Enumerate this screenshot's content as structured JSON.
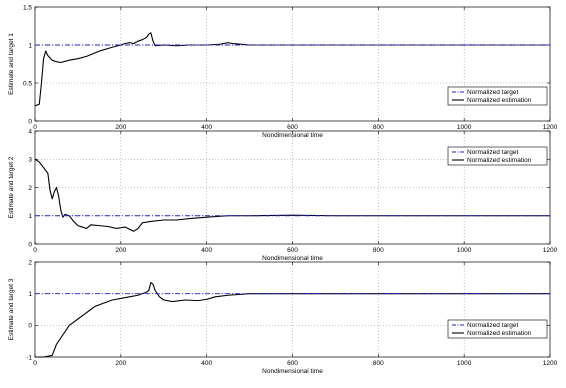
{
  "chart_data": [
    {
      "type": "line",
      "xlabel": "Nondimensional time",
      "ylabel": "Estimate and target 1",
      "xlim": [
        0,
        1200
      ],
      "ylim": [
        0,
        1.5
      ],
      "xticks": [
        0,
        200,
        400,
        600,
        800,
        1000,
        1200
      ],
      "yticks": [
        0,
        0.5,
        1,
        1.5
      ],
      "xtick_labels": [
        "0",
        "200",
        "400",
        "600",
        "800",
        "1000",
        "1200"
      ],
      "ytick_labels": [
        "0",
        "0.5",
        "1",
        "1.5"
      ],
      "grid": true,
      "legend_position": "bottom-right",
      "series": [
        {
          "name": "Normalized target",
          "style": "dashdot",
          "color": "#1f1fcf",
          "x": [
            0,
            1200
          ],
          "y": [
            1,
            1
          ]
        },
        {
          "name": "Normalized estimation",
          "style": "solid",
          "color": "#000000",
          "x": [
            0,
            10,
            15,
            20,
            25,
            30,
            40,
            50,
            60,
            80,
            100,
            120,
            150,
            180,
            200,
            210,
            220,
            230,
            240,
            250,
            260,
            265,
            270,
            275,
            280,
            300,
            330,
            360,
            400,
            430,
            450,
            460,
            500,
            560,
            620,
            700,
            800,
            900,
            1000,
            1100,
            1200
          ],
          "y": [
            0.2,
            0.22,
            0.5,
            0.82,
            0.92,
            0.86,
            0.8,
            0.78,
            0.77,
            0.8,
            0.82,
            0.85,
            0.92,
            0.97,
            1.0,
            1.02,
            1.03,
            1.02,
            1.05,
            1.07,
            1.1,
            1.14,
            1.16,
            1.05,
            0.99,
            1.0,
            0.99,
            1.0,
            1.0,
            1.01,
            1.03,
            1.02,
            1.0,
            1.0,
            1.0,
            1.0,
            1.0,
            1.0,
            1.0,
            1.0,
            1.0
          ]
        }
      ]
    },
    {
      "type": "line",
      "xlabel": "Nondimensional time",
      "ylabel": "Estimate and target 2",
      "xlim": [
        0,
        1200
      ],
      "ylim": [
        0,
        4
      ],
      "xticks": [
        0,
        200,
        400,
        600,
        800,
        1000,
        1200
      ],
      "yticks": [
        0,
        1,
        2,
        3,
        4
      ],
      "xtick_labels": [
        "0",
        "200",
        "400",
        "600",
        "800",
        "1000",
        "1200"
      ],
      "ytick_labels": [
        "0",
        "1",
        "2",
        "3",
        "4"
      ],
      "grid": true,
      "legend_position": "top-right",
      "series": [
        {
          "name": "Normalized target",
          "style": "dashdot",
          "color": "#1f1fcf",
          "x": [
            0,
            1200
          ],
          "y": [
            1,
            1
          ]
        },
        {
          "name": "Normalized estimation",
          "style": "solid",
          "color": "#000000",
          "x": [
            0,
            10,
            20,
            30,
            35,
            40,
            45,
            50,
            55,
            60,
            65,
            70,
            80,
            90,
            100,
            110,
            120,
            130,
            150,
            170,
            190,
            210,
            230,
            240,
            250,
            270,
            300,
            330,
            360,
            400,
            450,
            500,
            600,
            700,
            800,
            900,
            1000,
            1100,
            1200
          ],
          "y": [
            3.0,
            2.9,
            2.7,
            2.5,
            1.9,
            1.6,
            1.85,
            2.0,
            1.7,
            1.2,
            0.95,
            1.05,
            1.0,
            0.8,
            0.65,
            0.6,
            0.55,
            0.68,
            0.65,
            0.62,
            0.55,
            0.6,
            0.45,
            0.55,
            0.75,
            0.8,
            0.85,
            0.85,
            0.9,
            0.95,
            1.0,
            1.0,
            1.02,
            1.0,
            1.0,
            1.0,
            1.0,
            1.0,
            1.0
          ]
        }
      ]
    },
    {
      "type": "line",
      "xlabel": "Nondimensional time",
      "ylabel": "Estimate and target 3",
      "xlim": [
        0,
        1200
      ],
      "ylim": [
        -1,
        2
      ],
      "xticks": [
        0,
        200,
        400,
        600,
        800,
        1000,
        1200
      ],
      "yticks": [
        -1,
        0,
        1,
        2
      ],
      "xtick_labels": [
        "0",
        "200",
        "400",
        "600",
        "800",
        "1000",
        "1200"
      ],
      "ytick_labels": [
        "-1",
        "0",
        "1",
        "2"
      ],
      "grid": true,
      "legend_position": "bottom-right",
      "series": [
        {
          "name": "Normalized target",
          "style": "dashdot",
          "color": "#1f1fcf",
          "x": [
            0,
            1200
          ],
          "y": [
            1,
            1
          ]
        },
        {
          "name": "Normalized estimation",
          "style": "solid",
          "color": "#000000",
          "x": [
            0,
            20,
            40,
            50,
            60,
            70,
            80,
            90,
            100,
            110,
            120,
            130,
            140,
            150,
            160,
            180,
            200,
            220,
            240,
            250,
            260,
            265,
            270,
            275,
            280,
            290,
            300,
            320,
            350,
            380,
            400,
            420,
            450,
            500,
            600,
            700,
            800,
            900,
            1000,
            1100,
            1200
          ],
          "y": [
            -1.0,
            -1.0,
            -0.95,
            -0.6,
            -0.4,
            -0.2,
            0.0,
            0.1,
            0.2,
            0.3,
            0.4,
            0.5,
            0.6,
            0.65,
            0.7,
            0.8,
            0.85,
            0.9,
            0.95,
            1.0,
            1.05,
            1.1,
            1.35,
            1.3,
            1.1,
            0.9,
            0.8,
            0.75,
            0.8,
            0.78,
            0.82,
            0.9,
            0.95,
            1.0,
            1.0,
            1.0,
            1.0,
            1.0,
            1.0,
            1.0,
            1.0
          ]
        }
      ]
    }
  ]
}
